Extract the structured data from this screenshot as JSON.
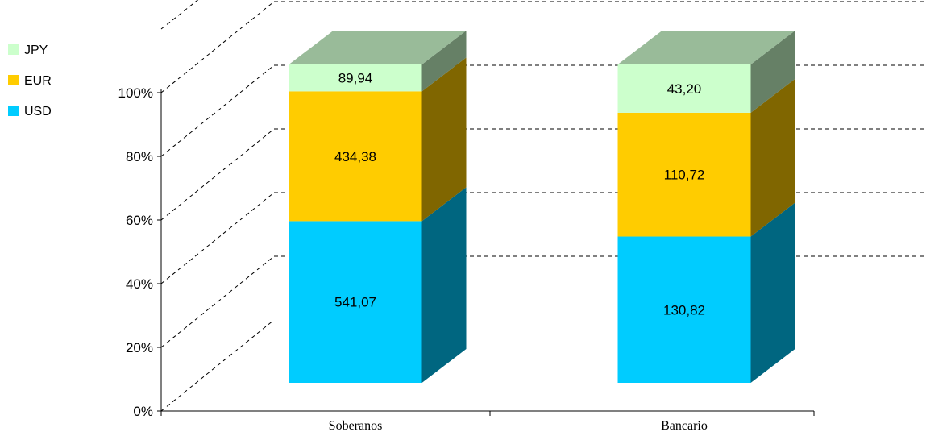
{
  "chart_data": {
    "type": "bar",
    "stacked": "percent",
    "three_d": true,
    "categories": [
      "Soberanos",
      "Bancario"
    ],
    "series": [
      {
        "name": "USD",
        "values": [
          541.07,
          130.82
        ],
        "labels": [
          "541,07",
          "130,82"
        ],
        "color": "#00CCFF",
        "side_color": "#006680"
      },
      {
        "name": "EUR",
        "values": [
          434.38,
          110.72
        ],
        "labels": [
          "434,38",
          "110,72"
        ],
        "color": "#FFCC00",
        "side_color": "#806600"
      },
      {
        "name": "JPY",
        "values": [
          89.94,
          43.2
        ],
        "labels": [
          "89,94",
          "43,20"
        ],
        "color": "#CCFFCC",
        "side_color": "#668066"
      }
    ],
    "y_ticks": [
      "0%",
      "20%",
      "40%",
      "60%",
      "80%",
      "100%"
    ],
    "ylim": [
      0,
      100
    ],
    "grid": "dashed",
    "legend_position": "top-left",
    "legend_order": [
      "JPY",
      "EUR",
      "USD"
    ]
  }
}
